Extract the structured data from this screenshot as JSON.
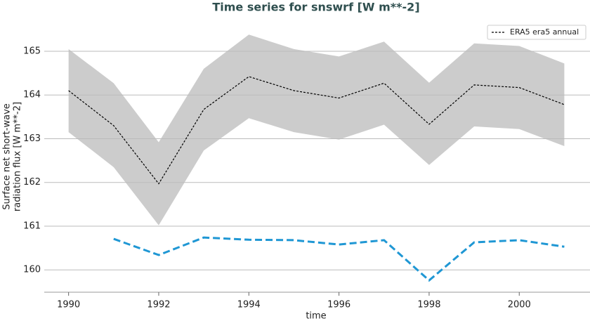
{
  "chart_data": {
    "type": "line",
    "title": "Time series for snswrf [W m**-2]",
    "xlabel": "time",
    "ylabel": [
      "Surface net short-wave",
      "radiation flux [W m**-2]"
    ],
    "x": [
      1990,
      1991,
      1992,
      1993,
      1994,
      1995,
      1996,
      1997,
      1998,
      1999,
      2000,
      2001
    ],
    "series": [
      {
        "name": "ERA5 era5 annual",
        "color": "#000000",
        "dash": "3,2",
        "width": 1.2,
        "values": [
          164.1,
          163.3,
          161.97,
          163.67,
          164.42,
          164.1,
          163.93,
          164.27,
          163.33,
          164.23,
          164.17,
          163.78
        ]
      },
      {
        "color": "#1f97d4",
        "dash": "10,5",
        "width": 3,
        "values": [
          null,
          160.71,
          160.34,
          160.74,
          160.69,
          160.68,
          160.58,
          160.68,
          159.76,
          160.63,
          160.68,
          160.53
        ]
      }
    ],
    "band": {
      "color": "#cccccc",
      "upper": [
        165.05,
        164.27,
        162.92,
        164.6,
        165.38,
        165.05,
        164.88,
        165.22,
        164.28,
        165.18,
        165.12,
        164.72
      ],
      "lower": [
        163.15,
        162.35,
        161.02,
        162.73,
        163.47,
        163.15,
        162.98,
        163.32,
        162.4,
        163.28,
        163.22,
        162.83
      ]
    },
    "xlim": [
      1989.46,
      2001.57
    ],
    "ylim": [
      159.49,
      165.69
    ],
    "xticks": [
      1990,
      1992,
      1994,
      1996,
      1998,
      2000
    ],
    "yticks": [
      160,
      161,
      162,
      163,
      164,
      165
    ],
    "grid": true,
    "legend": "upper-right"
  }
}
